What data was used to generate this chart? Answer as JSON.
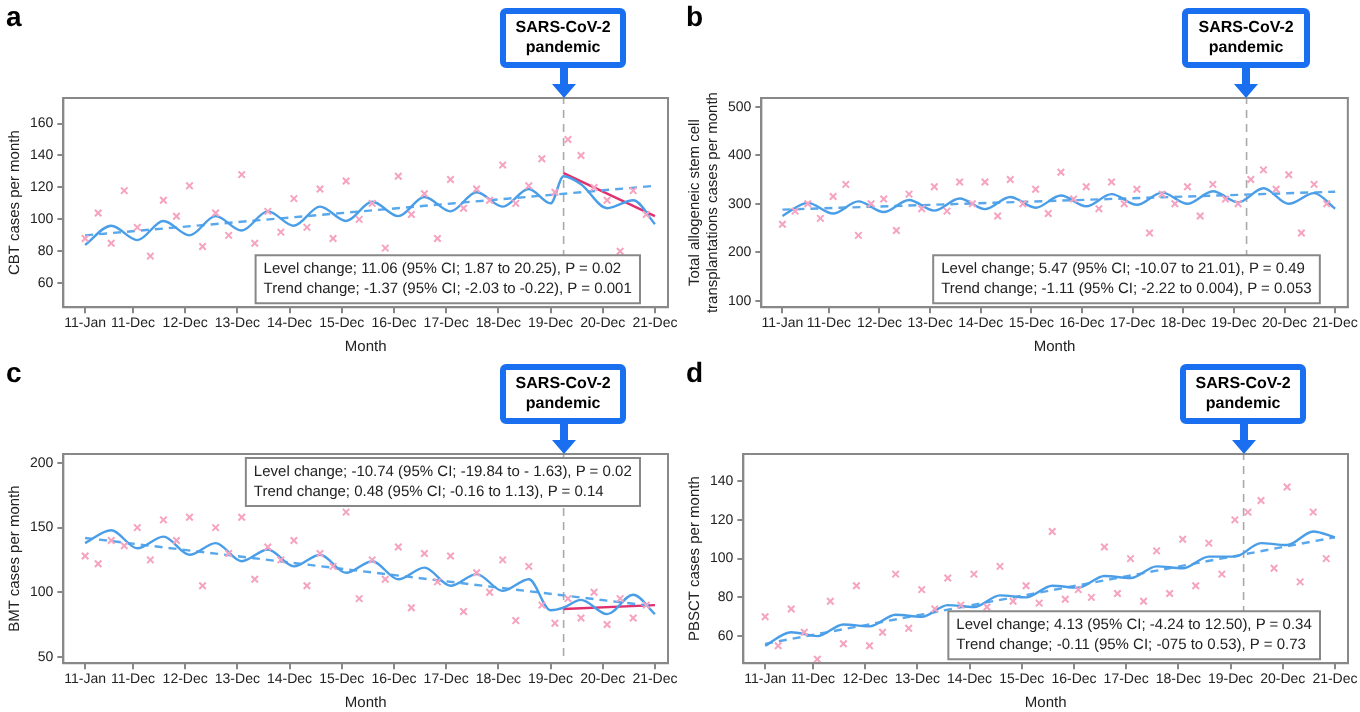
{
  "chart_data": [
    {
      "type": "line",
      "title": "a",
      "xlabel": "Month",
      "ylabel": "CBT cases per month",
      "xlim": [
        "2010-08",
        "2022-03"
      ],
      "ylim": [
        45,
        176
      ],
      "yticks": [
        60,
        80,
        100,
        120,
        140,
        160
      ],
      "xticks": [
        {
          "value": "2011-01",
          "label": "11-Jan"
        },
        {
          "value": "2011-12",
          "label": "11-Dec"
        },
        {
          "value": "2012-12",
          "label": "12-Dec"
        },
        {
          "value": "2013-12",
          "label": "13-Dec"
        },
        {
          "value": "2014-12",
          "label": "14-Dec"
        },
        {
          "value": "2015-12",
          "label": "15-Dec"
        },
        {
          "value": "2016-12",
          "label": "16-Dec"
        },
        {
          "value": "2017-12",
          "label": "17-Dec"
        },
        {
          "value": "2018-12",
          "label": "18-Dec"
        },
        {
          "value": "2019-12",
          "label": "19-Dec"
        },
        {
          "value": "2020-12",
          "label": "20-Dec"
        },
        {
          "value": "2021-12",
          "label": "21-Dec"
        }
      ],
      "grid": false,
      "legend": false,
      "ref_lines": [
        {
          "axis": "x",
          "value": "2020-03",
          "label": "SARS-CoV-2\npandemic",
          "color": "#aaaaaa",
          "line_style": "dashed"
        }
      ],
      "annotations": [
        "Level change; 11.06 (95% CI; 1.87 to 20.25), P = 0.02",
        "Trend change; -1.37 (95% CI; -2.03 to -0.22), P = 0.001"
      ],
      "series": [
        {
          "type": "scatter",
          "marker": "cross",
          "color": "#f5a3c0",
          "x": [
            "2011-01",
            "2011-04",
            "2011-07",
            "2011-10",
            "2012-01",
            "2012-04",
            "2012-07",
            "2012-10",
            "2013-01",
            "2013-04",
            "2013-07",
            "2013-10",
            "2014-01",
            "2014-04",
            "2014-07",
            "2014-10",
            "2015-01",
            "2015-04",
            "2015-07",
            "2015-10",
            "2016-01",
            "2016-04",
            "2016-07",
            "2016-10",
            "2017-01",
            "2017-04",
            "2017-07",
            "2017-10",
            "2018-01",
            "2018-04",
            "2018-07",
            "2018-10",
            "2019-01",
            "2019-04",
            "2019-07",
            "2019-10",
            "2020-01",
            "2020-04",
            "2020-07",
            "2020-10",
            "2021-01",
            "2021-04",
            "2021-07",
            "2021-10"
          ],
          "values": [
            88,
            104,
            85,
            118,
            95,
            77,
            112,
            102,
            121,
            83,
            104,
            90,
            128,
            85,
            105,
            92,
            113,
            95,
            119,
            88,
            124,
            100,
            110,
            82,
            127,
            103,
            116,
            88,
            125,
            107,
            119,
            112,
            134,
            110,
            121,
            138,
            117,
            150,
            140,
            120,
            112,
            80,
            118,
            103
          ]
        },
        {
          "type": "line",
          "line_style": "solid",
          "color": "#4a9ee8",
          "x": [
            "2011-01",
            "2011-07",
            "2012-01",
            "2012-07",
            "2013-01",
            "2013-07",
            "2014-01",
            "2014-07",
            "2015-01",
            "2015-07",
            "2016-01",
            "2016-07",
            "2017-01",
            "2017-07",
            "2018-01",
            "2018-07",
            "2019-01",
            "2019-07",
            "2019-12",
            "2020-03",
            "2020-07",
            "2021-01",
            "2021-07",
            "2021-12"
          ],
          "values": [
            84,
            96,
            87,
            99,
            90,
            102,
            93,
            105,
            96,
            108,
            99,
            111,
            102,
            114,
            105,
            117,
            108,
            119,
            110,
            127,
            122,
            107,
            112,
            97
          ]
        },
        {
          "type": "line",
          "line_style": "dashed",
          "color": "#5aa8ec",
          "x": [
            "2011-01",
            "2021-12"
          ],
          "values": [
            90,
            121
          ]
        },
        {
          "type": "line",
          "line_style": "solid",
          "color": "#e0306e",
          "x": [
            "2020-03",
            "2021-12"
          ],
          "values": [
            129,
            102
          ]
        }
      ]
    },
    {
      "type": "line",
      "title": "b",
      "xlabel": "Month",
      "ylabel": "Total allogeneic stem cell\ntransplantations cases per month",
      "xlim": [
        "2010-08",
        "2022-03"
      ],
      "ylim": [
        87,
        518
      ],
      "yticks": [
        100,
        200,
        300,
        400,
        500
      ],
      "xticks": [
        {
          "value": "2011-01",
          "label": "11-Jan"
        },
        {
          "value": "2011-12",
          "label": "11-Dec"
        },
        {
          "value": "2012-12",
          "label": "12-Dec"
        },
        {
          "value": "2013-12",
          "label": "13-Dec"
        },
        {
          "value": "2014-12",
          "label": "14-Dec"
        },
        {
          "value": "2015-12",
          "label": "15-Dec"
        },
        {
          "value": "2016-12",
          "label": "16-Dec"
        },
        {
          "value": "2017-12",
          "label": "17-Dec"
        },
        {
          "value": "2018-12",
          "label": "18-Dec"
        },
        {
          "value": "2019-12",
          "label": "19-Dec"
        },
        {
          "value": "2020-12",
          "label": "20-Dec"
        },
        {
          "value": "2021-12",
          "label": "21-Dec"
        }
      ],
      "grid": false,
      "legend": false,
      "ref_lines": [
        {
          "axis": "x",
          "value": "2020-03",
          "label": "SARS-CoV-2\npandemic",
          "color": "#aaaaaa",
          "line_style": "dashed"
        }
      ],
      "annotations": [
        "Level change; 5.47 (95% CI; -10.07 to 21.01), P = 0.49",
        "Trend change; -1.11 (95% CI; -2.22 to 0.004), P = 0.053"
      ],
      "series": [
        {
          "type": "scatter",
          "marker": "cross",
          "color": "#f5a3c0",
          "x": [
            "2011-01",
            "2011-04",
            "2011-07",
            "2011-10",
            "2012-01",
            "2012-04",
            "2012-07",
            "2012-10",
            "2013-01",
            "2013-04",
            "2013-07",
            "2013-10",
            "2014-01",
            "2014-04",
            "2014-07",
            "2014-10",
            "2015-01",
            "2015-04",
            "2015-07",
            "2015-10",
            "2016-01",
            "2016-04",
            "2016-07",
            "2016-10",
            "2017-01",
            "2017-04",
            "2017-07",
            "2017-10",
            "2018-01",
            "2018-04",
            "2018-07",
            "2018-10",
            "2019-01",
            "2019-04",
            "2019-07",
            "2019-10",
            "2020-01",
            "2020-04",
            "2020-07",
            "2020-10",
            "2021-01",
            "2021-04",
            "2021-07",
            "2021-10"
          ],
          "values": [
            258,
            285,
            300,
            270,
            315,
            340,
            235,
            300,
            310,
            245,
            320,
            290,
            335,
            285,
            345,
            300,
            345,
            275,
            350,
            300,
            330,
            280,
            365,
            310,
            335,
            290,
            345,
            300,
            330,
            240,
            320,
            300,
            335,
            275,
            340,
            310,
            300,
            350,
            370,
            330,
            360,
            240,
            340,
            300
          ]
        },
        {
          "type": "line",
          "line_style": "solid",
          "color": "#4a9ee8",
          "x": [
            "2011-01",
            "2011-07",
            "2012-01",
            "2012-07",
            "2013-01",
            "2013-07",
            "2014-01",
            "2014-07",
            "2015-01",
            "2015-07",
            "2016-01",
            "2016-07",
            "2017-01",
            "2017-07",
            "2018-01",
            "2018-07",
            "2019-01",
            "2019-07",
            "2020-01",
            "2020-07",
            "2021-01",
            "2021-07",
            "2021-12"
          ],
          "values": [
            275,
            302,
            280,
            305,
            283,
            308,
            286,
            311,
            289,
            314,
            292,
            317,
            295,
            320,
            298,
            323,
            300,
            326,
            303,
            332,
            300,
            322,
            290
          ]
        },
        {
          "type": "line",
          "line_style": "dashed",
          "color": "#5aa8ec",
          "x": [
            "2011-01",
            "2021-12"
          ],
          "values": [
            288,
            325
          ]
        }
      ]
    },
    {
      "type": "line",
      "title": "c",
      "xlabel": "Month",
      "ylabel": "BMT cases per month",
      "xlim": [
        "2010-08",
        "2022-03"
      ],
      "ylim": [
        45,
        207
      ],
      "yticks": [
        50,
        100,
        150,
        200
      ],
      "xticks": [
        {
          "value": "2011-01",
          "label": "11-Jan"
        },
        {
          "value": "2011-12",
          "label": "11-Dec"
        },
        {
          "value": "2012-12",
          "label": "12-Dec"
        },
        {
          "value": "2013-12",
          "label": "13-Dec"
        },
        {
          "value": "2014-12",
          "label": "14-Dec"
        },
        {
          "value": "2015-12",
          "label": "15-Dec"
        },
        {
          "value": "2016-12",
          "label": "16-Dec"
        },
        {
          "value": "2017-12",
          "label": "17-Dec"
        },
        {
          "value": "2018-12",
          "label": "18-Dec"
        },
        {
          "value": "2019-12",
          "label": "19-Dec"
        },
        {
          "value": "2020-12",
          "label": "20-Dec"
        },
        {
          "value": "2021-12",
          "label": "21-Dec"
        }
      ],
      "grid": false,
      "legend": false,
      "ref_lines": [
        {
          "axis": "x",
          "value": "2020-03",
          "label": "SARS-CoV-2\npandemic",
          "color": "#aaaaaa",
          "line_style": "dashed"
        }
      ],
      "annotations": [
        "Level change; -10.74 (95% CI; -19.84 to - 1.63), P = 0.02",
        "Trend change; 0.48 (95% CI; -0.16 to 1.13), P = 0.14"
      ],
      "series": [
        {
          "type": "scatter",
          "marker": "cross",
          "color": "#f5a3c0",
          "x": [
            "2011-01",
            "2011-04",
            "2011-07",
            "2011-10",
            "2012-01",
            "2012-04",
            "2012-07",
            "2012-10",
            "2013-01",
            "2013-04",
            "2013-07",
            "2013-10",
            "2014-01",
            "2014-04",
            "2014-07",
            "2014-10",
            "2015-01",
            "2015-04",
            "2015-07",
            "2015-10",
            "2016-01",
            "2016-04",
            "2016-07",
            "2016-10",
            "2017-01",
            "2017-04",
            "2017-07",
            "2017-10",
            "2018-01",
            "2018-04",
            "2018-07",
            "2018-10",
            "2019-01",
            "2019-04",
            "2019-07",
            "2019-10",
            "2020-01",
            "2020-04",
            "2020-07",
            "2020-10",
            "2021-01",
            "2021-04",
            "2021-07",
            "2021-10"
          ],
          "values": [
            128,
            122,
            140,
            136,
            150,
            125,
            156,
            140,
            158,
            105,
            150,
            130,
            158,
            110,
            135,
            125,
            140,
            105,
            130,
            120,
            162,
            95,
            125,
            110,
            135,
            88,
            130,
            108,
            128,
            85,
            115,
            100,
            125,
            78,
            120,
            90,
            76,
            95,
            80,
            100,
            75,
            95,
            80,
            90
          ]
        },
        {
          "type": "line",
          "line_style": "solid",
          "color": "#4a9ee8",
          "x": [
            "2011-01",
            "2011-07",
            "2012-01",
            "2012-07",
            "2013-01",
            "2013-07",
            "2014-01",
            "2014-07",
            "2015-01",
            "2015-07",
            "2016-01",
            "2016-07",
            "2017-01",
            "2017-07",
            "2018-01",
            "2018-07",
            "2019-01",
            "2019-07",
            "2019-12",
            "2020-03",
            "2020-07",
            "2021-01",
            "2021-07",
            "2021-12"
          ],
          "values": [
            138,
            148,
            134,
            143,
            129,
            138,
            124,
            133,
            120,
            129,
            115,
            124,
            110,
            119,
            105,
            114,
            101,
            110,
            86,
            88,
            94,
            83,
            98,
            83
          ]
        },
        {
          "type": "line",
          "line_style": "dashed",
          "color": "#5aa8ec",
          "x": [
            "2011-01",
            "2021-12"
          ],
          "values": [
            142,
            89
          ]
        },
        {
          "type": "line",
          "line_style": "solid",
          "color": "#e0306e",
          "x": [
            "2020-03",
            "2021-12"
          ],
          "values": [
            87,
            90
          ]
        }
      ]
    },
    {
      "type": "line",
      "title": "d",
      "xlabel": "Month",
      "ylabel": "PBSCT cases per month",
      "xlim": [
        "2010-08",
        "2022-03"
      ],
      "ylim": [
        46,
        154
      ],
      "yticks": [
        60,
        80,
        100,
        120,
        140
      ],
      "xticks": [
        {
          "value": "2011-01",
          "label": "11-Jan"
        },
        {
          "value": "2011-12",
          "label": "11-Dec"
        },
        {
          "value": "2012-12",
          "label": "12-Dec"
        },
        {
          "value": "2013-12",
          "label": "13-Dec"
        },
        {
          "value": "2014-12",
          "label": "14-Dec"
        },
        {
          "value": "2015-12",
          "label": "15-Dec"
        },
        {
          "value": "2016-12",
          "label": "16-Dec"
        },
        {
          "value": "2017-12",
          "label": "17-Dec"
        },
        {
          "value": "2018-12",
          "label": "18-Dec"
        },
        {
          "value": "2019-12",
          "label": "19-Dec"
        },
        {
          "value": "2020-12",
          "label": "20-Dec"
        },
        {
          "value": "2021-12",
          "label": "21-Dec"
        }
      ],
      "grid": false,
      "legend": false,
      "ref_lines": [
        {
          "axis": "x",
          "value": "2020-03",
          "label": "SARS-CoV-2\npandemic",
          "color": "#aaaaaa",
          "line_style": "dashed"
        }
      ],
      "annotations": [
        "Level change; 4.13 (95% CI; -4.24 to 12.50), P = 0.34",
        "Trend change; -0.11 (95% CI; -075 to 0.53), P = 0.73"
      ],
      "series": [
        {
          "type": "scatter",
          "marker": "cross",
          "color": "#f5a3c0",
          "x": [
            "2011-01",
            "2011-04",
            "2011-07",
            "2011-10",
            "2012-01",
            "2012-04",
            "2012-07",
            "2012-10",
            "2013-01",
            "2013-04",
            "2013-07",
            "2013-10",
            "2014-01",
            "2014-04",
            "2014-07",
            "2014-10",
            "2015-01",
            "2015-04",
            "2015-07",
            "2015-10",
            "2016-01",
            "2016-04",
            "2016-07",
            "2016-10",
            "2017-01",
            "2017-04",
            "2017-07",
            "2017-10",
            "2018-01",
            "2018-04",
            "2018-07",
            "2018-10",
            "2019-01",
            "2019-04",
            "2019-07",
            "2019-10",
            "2020-01",
            "2020-04",
            "2020-07",
            "2020-10",
            "2021-01",
            "2021-04",
            "2021-07",
            "2021-10"
          ],
          "values": [
            70,
            55,
            74,
            62,
            48,
            78,
            56,
            86,
            55,
            62,
            92,
            64,
            84,
            74,
            90,
            76,
            92,
            75,
            96,
            78,
            86,
            77,
            114,
            79,
            84,
            80,
            106,
            82,
            100,
            78,
            104,
            82,
            110,
            86,
            108,
            92,
            120,
            124,
            130,
            95,
            137,
            88,
            124,
            100
          ]
        },
        {
          "type": "line",
          "line_style": "solid",
          "color": "#4a9ee8",
          "x": [
            "2011-01",
            "2011-07",
            "2012-01",
            "2012-07",
            "2013-01",
            "2013-07",
            "2014-01",
            "2014-07",
            "2015-01",
            "2015-07",
            "2016-01",
            "2016-07",
            "2017-01",
            "2017-07",
            "2018-01",
            "2018-07",
            "2019-01",
            "2019-07",
            "2020-01",
            "2020-07",
            "2021-01",
            "2021-07",
            "2021-12"
          ],
          "values": [
            55,
            62,
            60,
            66,
            65,
            71,
            70,
            76,
            75,
            81,
            80,
            86,
            85,
            91,
            90,
            96,
            95,
            101,
            101,
            108,
            107,
            114,
            111
          ]
        },
        {
          "type": "line",
          "line_style": "dashed",
          "color": "#5aa8ec",
          "x": [
            "2011-01",
            "2021-12"
          ],
          "values": [
            56,
            111
          ]
        }
      ]
    }
  ]
}
